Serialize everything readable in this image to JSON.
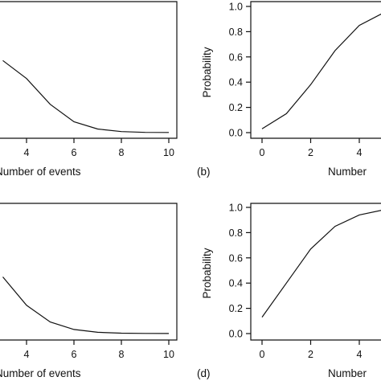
{
  "chart_data": [
    {
      "panel": "a",
      "type": "line",
      "panel_label": "",
      "xlabel": "Number of events",
      "ylabel": "",
      "xlim": [
        0,
        10
      ],
      "ylim": [
        0,
        0.5
      ],
      "x_ticks": [
        4,
        6,
        8,
        10
      ],
      "y_ticks": [],
      "x": [
        3,
        4,
        5,
        6,
        7,
        8,
        9,
        10
      ],
      "values": [
        0.28,
        0.21,
        0.11,
        0.042,
        0.014,
        0.004,
        0.001,
        0.0005
      ]
    },
    {
      "panel": "b",
      "type": "line",
      "panel_label": "(b)",
      "xlabel": "Number",
      "ylabel": "Probability",
      "xlim": [
        0,
        5
      ],
      "ylim": [
        0,
        1
      ],
      "x_ticks": [
        0,
        2,
        4
      ],
      "y_ticks": [
        "0.0",
        "0.2",
        "0.4",
        "0.6",
        "0.8",
        "1.0"
      ],
      "x": [
        0,
        1,
        2,
        3,
        4,
        5
      ],
      "values": [
        0.03,
        0.15,
        0.38,
        0.65,
        0.85,
        0.95
      ]
    },
    {
      "panel": "c",
      "type": "line",
      "panel_label": "",
      "xlabel": "Number of events",
      "ylabel": "",
      "xlim": [
        0,
        10
      ],
      "ylim": [
        0,
        0.5
      ],
      "x_ticks": [
        4,
        6,
        8,
        10
      ],
      "y_ticks": [],
      "x": [
        3,
        4,
        5,
        6,
        7,
        8,
        9,
        10
      ],
      "values": [
        0.22,
        0.11,
        0.045,
        0.016,
        0.005,
        0.0015,
        0.0005,
        0.0002
      ]
    },
    {
      "panel": "d",
      "type": "line",
      "panel_label": "(d)",
      "xlabel": "Number",
      "ylabel": "Probability",
      "xlim": [
        0,
        5
      ],
      "ylim": [
        0,
        1
      ],
      "x_ticks": [
        0,
        2,
        4
      ],
      "y_ticks": [
        "0.0",
        "0.2",
        "0.4",
        "0.6",
        "0.8",
        "1.0"
      ],
      "x": [
        0,
        1,
        2,
        3,
        4,
        5
      ],
      "values": [
        0.13,
        0.4,
        0.67,
        0.85,
        0.94,
        0.98
      ]
    }
  ]
}
